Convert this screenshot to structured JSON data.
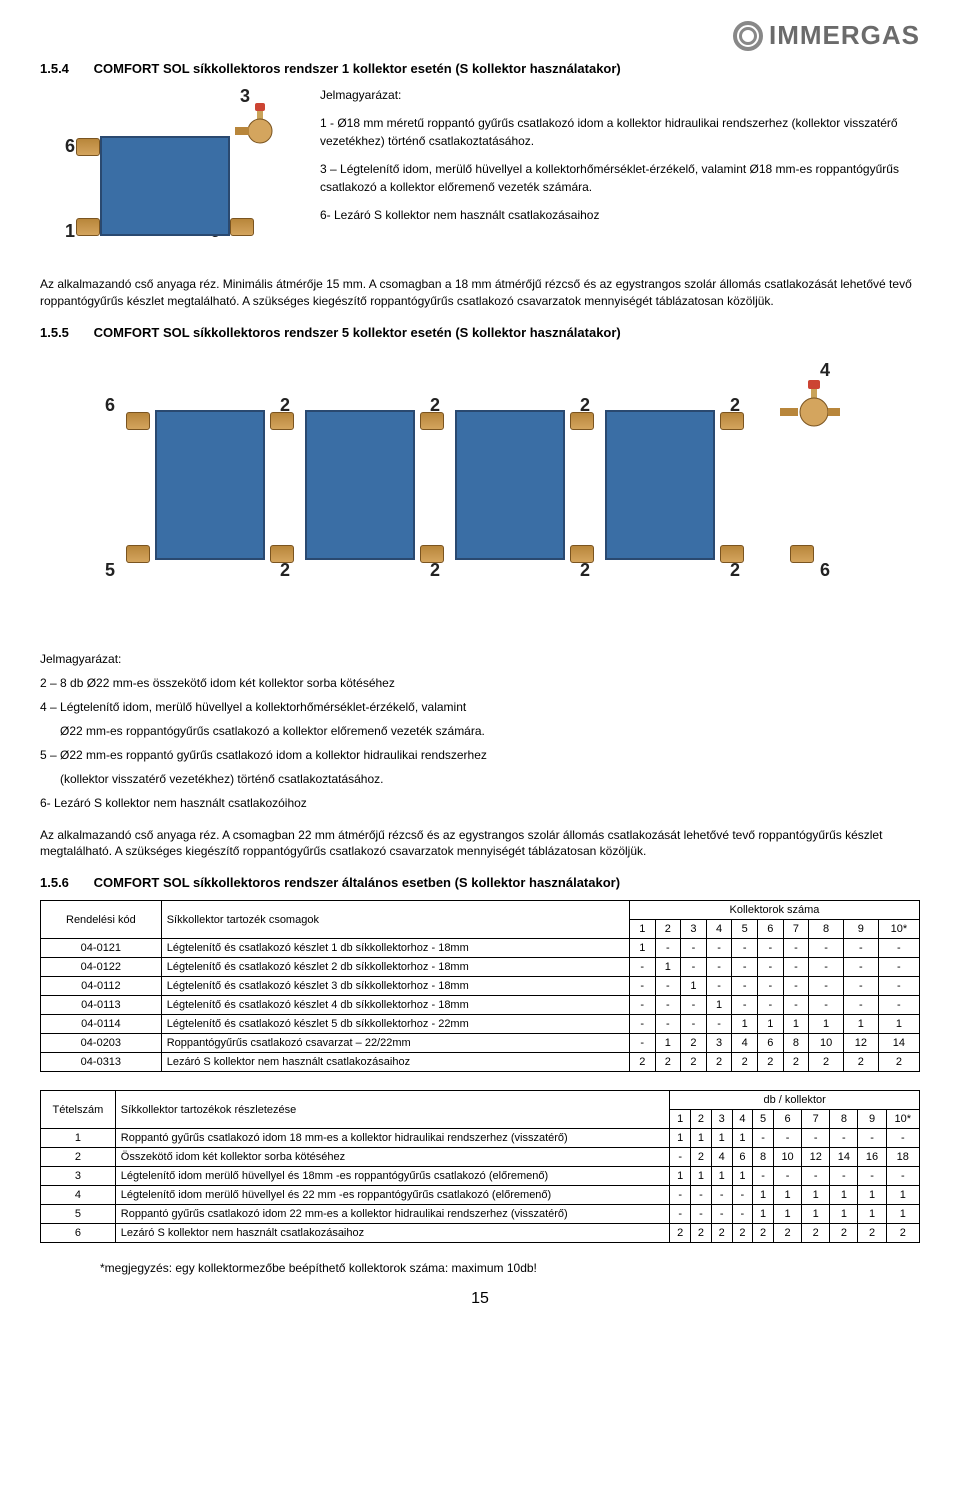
{
  "brand": "IMMERGAS",
  "section154": {
    "num": "1.5.4",
    "title": "COMFORT SOL síkkollektoros rendszer 1 kollektor esetén (S kollektor használatakor)",
    "legend_title": "Jelmagyarázat:",
    "item1": "1 - Ø18 mm méretű roppantó gyűrűs csatlakozó idom a kollektor hidraulikai rendszerhez (kollektor visszatérő vezetékhez) történő csatlakoztatásához.",
    "item3": "3 – Légtelenítő idom, merülő hüvellyel a kollektorhőmérséklet-érzékelő, valamint Ø18 mm-es roppantógyűrűs csatlakozó a kollektor előremenő vezeték számára.",
    "item6": "6- Lezáró S kollektor nem használt csatlakozásaihoz",
    "labels": {
      "l6a": "6",
      "l3": "3",
      "l1": "1",
      "l6b": "6"
    }
  },
  "body154": "Az alkalmazandó cső anyaga réz. Minimális átmérője 15 mm. A csomagban a 18 mm átmérőjű rézcső és az egystrangos szolár állomás csatlakozását lehetővé tevő roppantógyűrűs készlet megtalálható. A szükséges kiegészítő roppantógyűrűs csatlakozó csavarzatok mennyiségét táblázatosan közöljük.",
  "section155": {
    "num": "1.5.5",
    "title": "COMFORT SOL síkkollektoros rendszer 5 kollektor esetén (S kollektor használatakor)",
    "labels": {
      "top6": "6",
      "c2a": "2",
      "c2b": "2",
      "c2c": "2",
      "c2d": "2",
      "top4": "4",
      "bot5": "5",
      "b2a": "2",
      "b2b": "2",
      "b2c": "2",
      "b2d": "2",
      "bot6": "6"
    },
    "legend_title": "Jelmagyarázat:",
    "item2": "2 – 8 db Ø22 mm-es összekötő idom két kollektor sorba kötéséhez",
    "item4a": "4 – Légtelenítő idom, merülő hüvellyel a kollektorhőmérséklet-érzékelő, valamint",
    "item4b": "Ø22 mm-es roppantógyűrűs csatlakozó a kollektor előremenő vezeték számára.",
    "item5a": "5 – Ø22 mm-es roppantó gyűrűs csatlakozó idom a kollektor hidraulikai rendszerhez",
    "item5b": "(kollektor visszatérő vezetékhez) történő csatlakoztatásához.",
    "item6": "6- Lezáró S kollektor nem használt csatlakozóihoz"
  },
  "body155": "Az alkalmazandó cső anyaga réz. A csomagban 22 mm átmérőjű rézcső és az egystrangos szolár állomás csatlakozását lehetővé tevő roppantógyűrűs készlet megtalálható. A szükséges kiegészítő roppantógyűrűs csatlakozó csavarzatok mennyiségét táblázatosan közöljük.",
  "section156": {
    "num": "1.5.6",
    "title": "COMFORT SOL síkkollektoros rendszer általános esetben (S kollektor használatakor)"
  },
  "table1": {
    "h_code": "Rendelési kód",
    "h_pkg": "Síkkollektor tartozék csomagok",
    "h_count": "Kollektorok száma",
    "cols": [
      "1",
      "2",
      "3",
      "4",
      "5",
      "6",
      "7",
      "8",
      "9",
      "10*"
    ],
    "rows": [
      {
        "code": "04-0121",
        "name": "Légtelenítő és csatlakozó készlet 1 db síkkollektorhoz - 18mm",
        "v": [
          "1",
          "-",
          "-",
          "-",
          "-",
          "-",
          "-",
          "-",
          "-",
          "-"
        ]
      },
      {
        "code": "04-0122",
        "name": "Légtelenítő és csatlakozó készlet 2 db síkkollektorhoz - 18mm",
        "v": [
          "-",
          "1",
          "-",
          "-",
          "-",
          "-",
          "-",
          "-",
          "-",
          "-"
        ]
      },
      {
        "code": "04-0112",
        "name": "Légtelenítő és csatlakozó készlet 3 db síkkollektorhoz - 18mm",
        "v": [
          "-",
          "-",
          "1",
          "-",
          "-",
          "-",
          "-",
          "-",
          "-",
          "-"
        ]
      },
      {
        "code": "04-0113",
        "name": "Légtelenítő és csatlakozó készlet 4 db síkkollektorhoz - 18mm",
        "v": [
          "-",
          "-",
          "-",
          "1",
          "-",
          "-",
          "-",
          "-",
          "-",
          "-"
        ]
      },
      {
        "code": "04-0114",
        "name": "Légtelenítő és csatlakozó készlet 5 db síkkollektorhoz - 22mm",
        "v": [
          "-",
          "-",
          "-",
          "-",
          "1",
          "1",
          "1",
          "1",
          "1",
          "1"
        ]
      },
      {
        "code": "04-0203",
        "name": "Roppantógyűrűs csatlakozó csavarzat – 22/22mm",
        "v": [
          "-",
          "1",
          "2",
          "3",
          "4",
          "6",
          "8",
          "10",
          "12",
          "14"
        ]
      },
      {
        "code": "04-0313",
        "name": "Lezáró S kollektor nem használt csatlakozásaihoz",
        "v": [
          "2",
          "2",
          "2",
          "2",
          "2",
          "2",
          "2",
          "2",
          "2",
          "2"
        ]
      }
    ]
  },
  "table2": {
    "h_item": "Tételszám",
    "h_detail": "Síkkollektor tartozékok részletezése",
    "h_count": "db / kollektor",
    "cols": [
      "1",
      "2",
      "3",
      "4",
      "5",
      "6",
      "7",
      "8",
      "9",
      "10*"
    ],
    "rows": [
      {
        "n": "1",
        "name": "Roppantó gyűrűs csatlakozó idom 18 mm-es a kollektor hidraulikai rendszerhez (visszatérő)",
        "v": [
          "1",
          "1",
          "1",
          "1",
          "-",
          "-",
          "-",
          "-",
          "-",
          "-"
        ]
      },
      {
        "n": "2",
        "name": "Összekötő idom két kollektor sorba kötéséhez",
        "v": [
          "-",
          "2",
          "4",
          "6",
          "8",
          "10",
          "12",
          "14",
          "16",
          "18"
        ]
      },
      {
        "n": "3",
        "name": "Légtelenítő idom merülő hüvellyel és 18mm -es roppantógyűrűs csatlakozó  (előremenő)",
        "v": [
          "1",
          "1",
          "1",
          "1",
          "-",
          "-",
          "-",
          "-",
          "-",
          "-"
        ]
      },
      {
        "n": "4",
        "name": "Légtelenítő idom merülő hüvellyel és 22 mm -es roppantógyűrűs csatlakozó  (előremenő)",
        "v": [
          "-",
          "-",
          "-",
          "-",
          "1",
          "1",
          "1",
          "1",
          "1",
          "1"
        ]
      },
      {
        "n": "5",
        "name": "Roppantó gyűrűs csatlakozó idom 22 mm-es a kollektor hidraulikai rendszerhez (visszatérő)",
        "v": [
          "-",
          "-",
          "-",
          "-",
          "1",
          "1",
          "1",
          "1",
          "1",
          "1"
        ]
      },
      {
        "n": "6",
        "name": "Lezáró S kollektor nem használt csatlakozásaihoz",
        "v": [
          "2",
          "2",
          "2",
          "2",
          "2",
          "2",
          "2",
          "2",
          "2",
          "2"
        ]
      }
    ]
  },
  "note": "*megjegyzés: egy kollektormezőbe beépíthető kollektorok száma: maximum 10db!",
  "page": "15"
}
